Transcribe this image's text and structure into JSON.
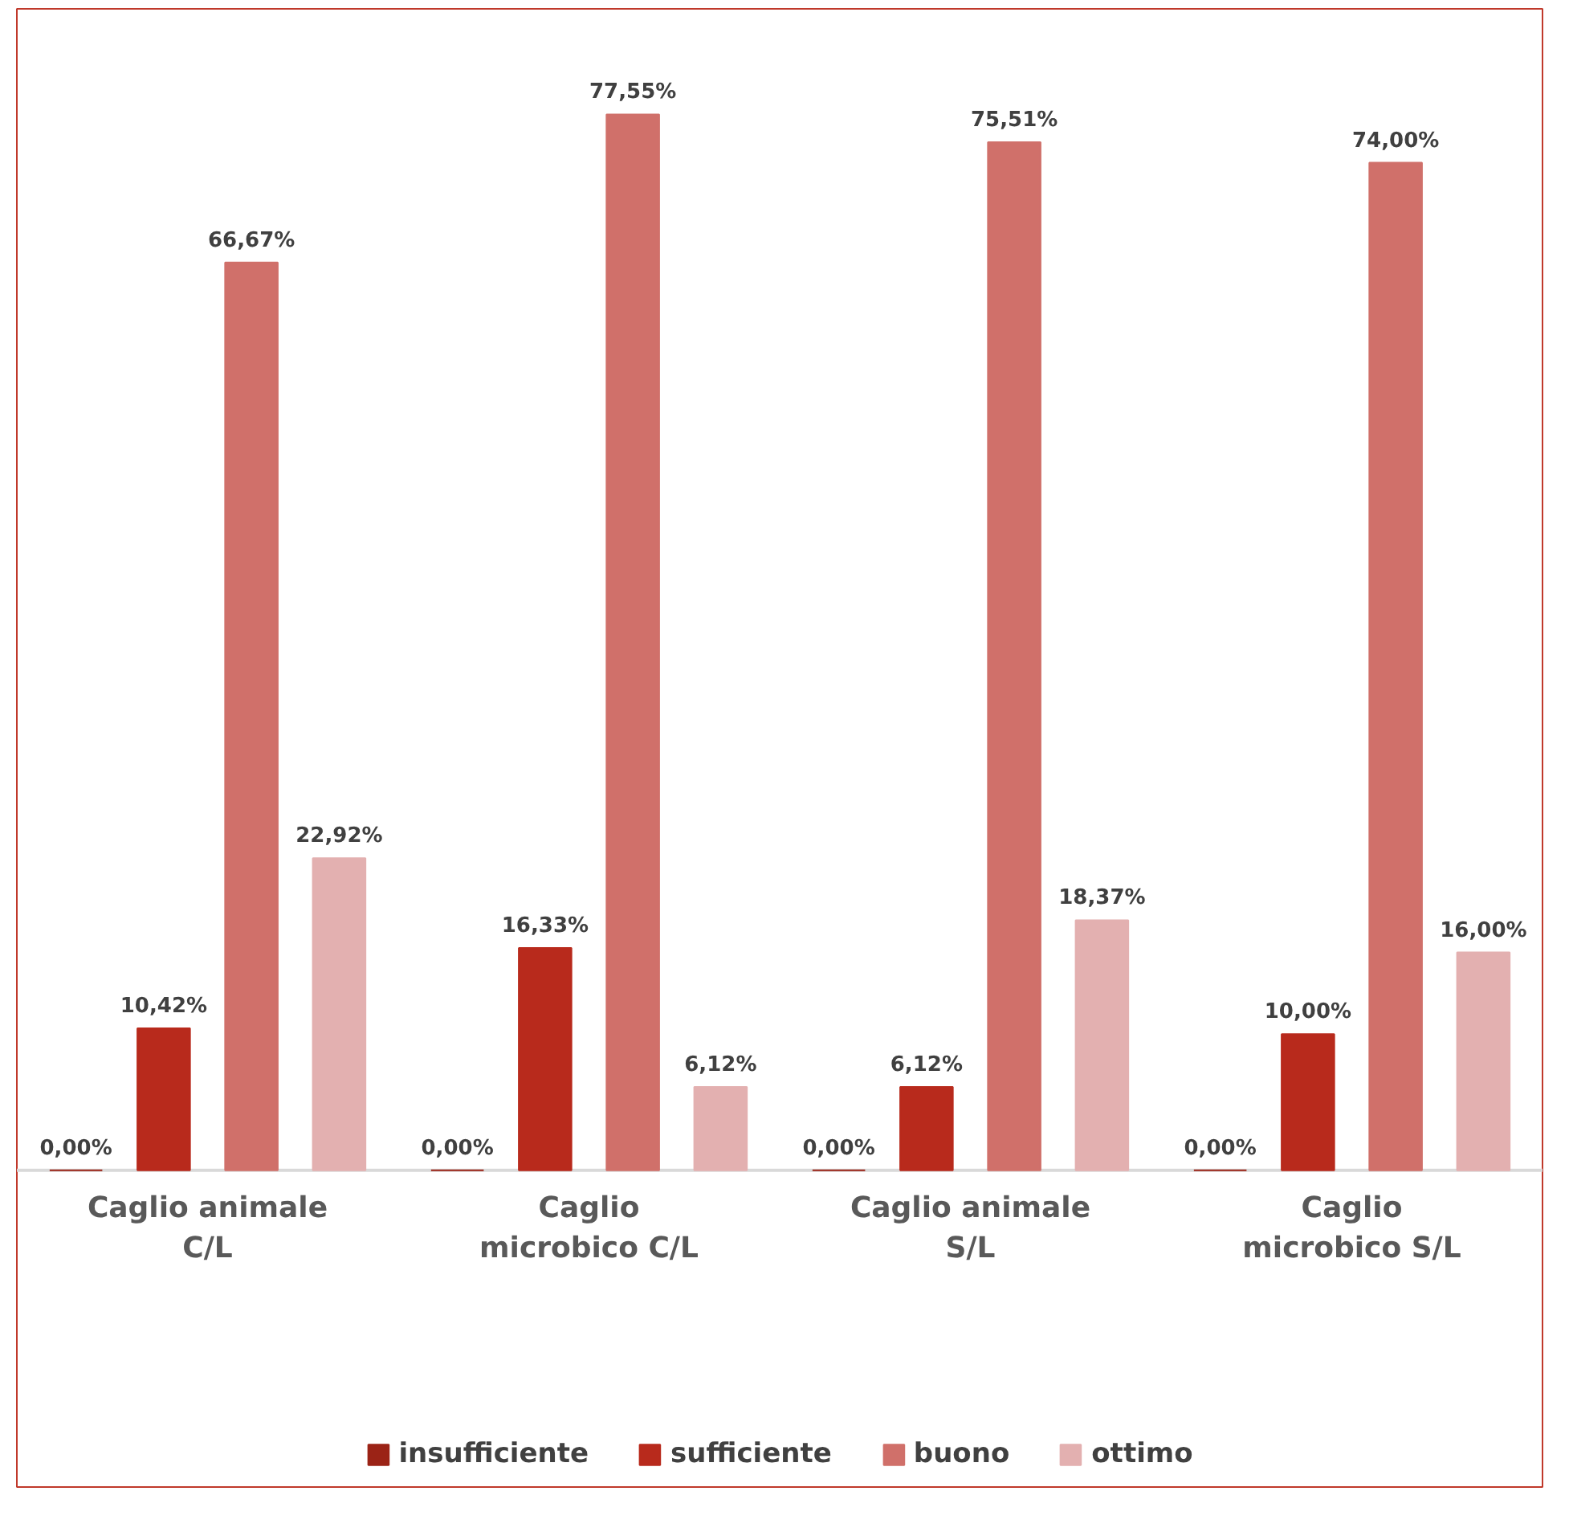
{
  "chart_data": {
    "type": "bar",
    "categories": [
      "Caglio animale C/L",
      "Caglio microbico C/L",
      "Caglio animale S/L",
      "Caglio microbico S/L"
    ],
    "series": [
      {
        "name": "insufficiente",
        "color": "#9b2316",
        "values": [
          0,
          0,
          0,
          0
        ],
        "value_labels": [
          "0,00%",
          "0,00%",
          "0,00%",
          "0,00%"
        ]
      },
      {
        "name": "sufficiente",
        "color": "#b82a1c",
        "values": [
          10.42,
          16.33,
          6.12,
          10.0
        ],
        "value_labels": [
          "10,42%",
          "16,33%",
          "6,12%",
          "10,00%"
        ]
      },
      {
        "name": "buono",
        "color": "#d0706a",
        "values": [
          66.67,
          77.55,
          75.51,
          74.0
        ],
        "value_labels": [
          "66,67%",
          "77,55%",
          "75,51%",
          "74,00%"
        ]
      },
      {
        "name": "ottimo",
        "color": "#e3b0b0",
        "values": [
          22.92,
          6.12,
          18.37,
          16.0
        ],
        "value_labels": [
          "22,92%",
          "6,12%",
          "18,37%",
          "16,00%"
        ]
      }
    ],
    "grid": false,
    "legend": "bottom"
  }
}
